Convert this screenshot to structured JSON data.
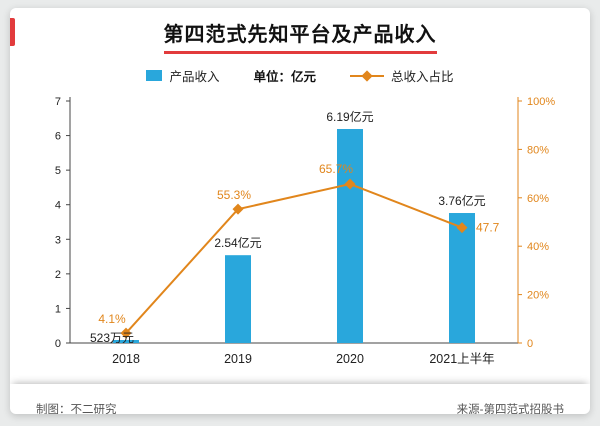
{
  "page": {
    "title": "第四范式先知平台及产品收入",
    "footer_left": "制图：不二研究",
    "footer_right": "来源-第四范式招股书"
  },
  "legend": {
    "bar_label": "产品收入",
    "unit_label": "单位：亿元",
    "line_label": "总收入占比"
  },
  "colors": {
    "bar": "#29A7DC",
    "line": "#E1861C",
    "accent_red": "#E23B3C",
    "axis": "#444444",
    "label_dark": "#222222"
  },
  "chart_data": {
    "type": "bar",
    "title": "第四范式先知平台及产品收入",
    "categories": [
      "2018",
      "2019",
      "2020",
      "2021上半年"
    ],
    "series": [
      {
        "name": "产品收入",
        "type": "bar",
        "axis": "left",
        "values": [
          0.0523,
          2.54,
          6.19,
          3.76
        ],
        "labels": [
          "523万元",
          "2.54亿元",
          "6.19亿元",
          "3.76亿元"
        ]
      },
      {
        "name": "总收入占比",
        "type": "line",
        "axis": "right",
        "values": [
          4.1,
          55.3,
          65.7,
          47.7
        ],
        "labels": [
          "4.1%",
          "55.3%",
          "65.7%",
          "47.7"
        ]
      }
    ],
    "left_axis": {
      "min": 0,
      "max": 7,
      "ticks": [
        0,
        1,
        2,
        3,
        4,
        5,
        6,
        7
      ]
    },
    "right_axis": {
      "min": 0,
      "max": 100,
      "tick_labels": [
        "0",
        "20%",
        "40%",
        "60%",
        "80%",
        "100%"
      ],
      "tick_values": [
        0,
        20,
        40,
        60,
        80,
        100
      ]
    },
    "legend_position": "top",
    "grid": false
  }
}
